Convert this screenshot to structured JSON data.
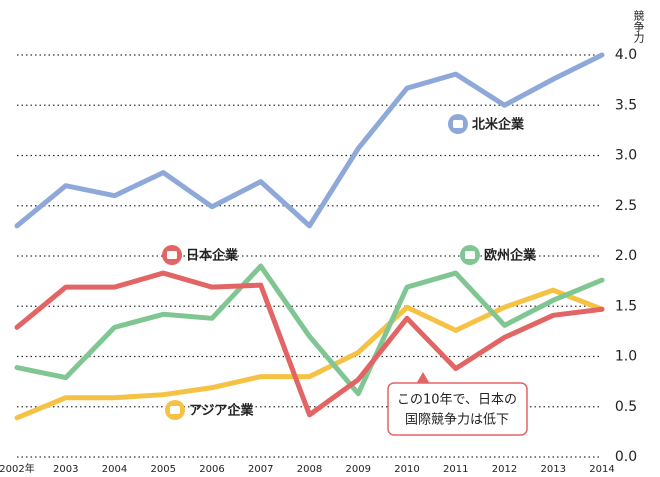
{
  "chart_data": {
    "type": "line",
    "y_label": "競争力",
    "categories": [
      "2002年",
      "2003",
      "2004",
      "2005",
      "2006",
      "2007",
      "2008",
      "2009",
      "2010",
      "2011",
      "2012",
      "2013",
      "2014"
    ],
    "series": [
      {
        "name": "北米企業",
        "color": "#8fa8da",
        "values": [
          2.3,
          2.7,
          2.6,
          2.83,
          2.49,
          2.74,
          2.3,
          3.07,
          3.67,
          3.81,
          3.5,
          3.76,
          4.0
        ]
      },
      {
        "name": "日本企業",
        "color": "#e36464",
        "values": [
          1.29,
          1.69,
          1.69,
          1.83,
          1.69,
          1.71,
          0.42,
          0.77,
          1.38,
          0.88,
          1.19,
          1.41,
          1.47
        ]
      },
      {
        "name": "欧州企業",
        "color": "#80c693",
        "values": [
          0.89,
          0.79,
          1.29,
          1.42,
          1.38,
          1.9,
          1.2,
          0.63,
          1.69,
          1.83,
          1.31,
          1.56,
          1.76
        ]
      },
      {
        "name": "アジア企業",
        "color": "#f5c244",
        "values": [
          0.39,
          0.59,
          0.59,
          0.62,
          0.69,
          0.8,
          0.8,
          1.04,
          1.49,
          1.26,
          1.49,
          1.66,
          1.47
        ]
      }
    ],
    "ylim": [
      0,
      4
    ],
    "yticks": [
      {
        "value": 0,
        "label": "0.0"
      },
      0.5,
      {
        "value": 1,
        "label": "1.0"
      },
      1.5,
      {
        "value": 2,
        "label": "2.0"
      },
      2.5,
      {
        "value": 3,
        "label": "3.0"
      },
      3.5,
      {
        "value": 4,
        "label": "4.0"
      }
    ],
    "grid": true,
    "annotation": [
      "この10年で、日本の",
      "国際競争力は低下"
    ]
  }
}
